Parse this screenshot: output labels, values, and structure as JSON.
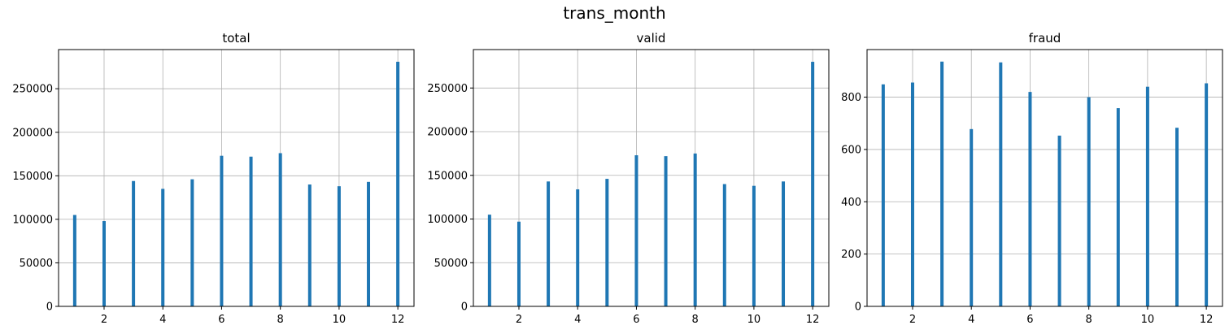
{
  "figure": {
    "title": "trans_month"
  },
  "chart_data": [
    {
      "type": "bar",
      "title": "total",
      "xlabel": "",
      "ylabel": "",
      "grid": true,
      "color": "#1f77b4",
      "x": [
        1,
        2,
        3,
        4,
        5,
        6,
        7,
        8,
        9,
        10,
        11,
        12
      ],
      "values": [
        105000,
        98000,
        144000,
        135000,
        146000,
        173000,
        172000,
        176000,
        140000,
        138000,
        143000,
        281000
      ],
      "xlim": [
        0.45,
        12.55
      ],
      "ylim": [
        0,
        295000
      ],
      "xticks": [
        2,
        4,
        6,
        8,
        10,
        12
      ],
      "yticks": [
        0,
        50000,
        100000,
        150000,
        200000,
        250000
      ]
    },
    {
      "type": "bar",
      "title": "valid",
      "xlabel": "",
      "ylabel": "",
      "grid": true,
      "color": "#1f77b4",
      "x": [
        1,
        2,
        3,
        4,
        5,
        6,
        7,
        8,
        9,
        10,
        11,
        12
      ],
      "values": [
        105000,
        97000,
        143000,
        134000,
        146000,
        173000,
        172000,
        175000,
        140000,
        138000,
        143000,
        280000
      ],
      "xlim": [
        0.45,
        12.55
      ],
      "ylim": [
        0,
        294000
      ],
      "xticks": [
        2,
        4,
        6,
        8,
        10,
        12
      ],
      "yticks": [
        0,
        50000,
        100000,
        150000,
        200000,
        250000
      ]
    },
    {
      "type": "bar",
      "title": "fraud",
      "xlabel": "",
      "ylabel": "",
      "grid": true,
      "color": "#1f77b4",
      "x": [
        1,
        2,
        3,
        4,
        5,
        6,
        7,
        8,
        9,
        10,
        11,
        12
      ],
      "values": [
        849,
        856,
        936,
        678,
        933,
        820,
        653,
        800,
        758,
        840,
        683,
        853
      ],
      "xlim": [
        0.45,
        12.55
      ],
      "ylim": [
        0,
        982
      ],
      "xticks": [
        2,
        4,
        6,
        8,
        10,
        12
      ],
      "yticks": [
        0,
        200,
        400,
        600,
        800
      ]
    }
  ]
}
